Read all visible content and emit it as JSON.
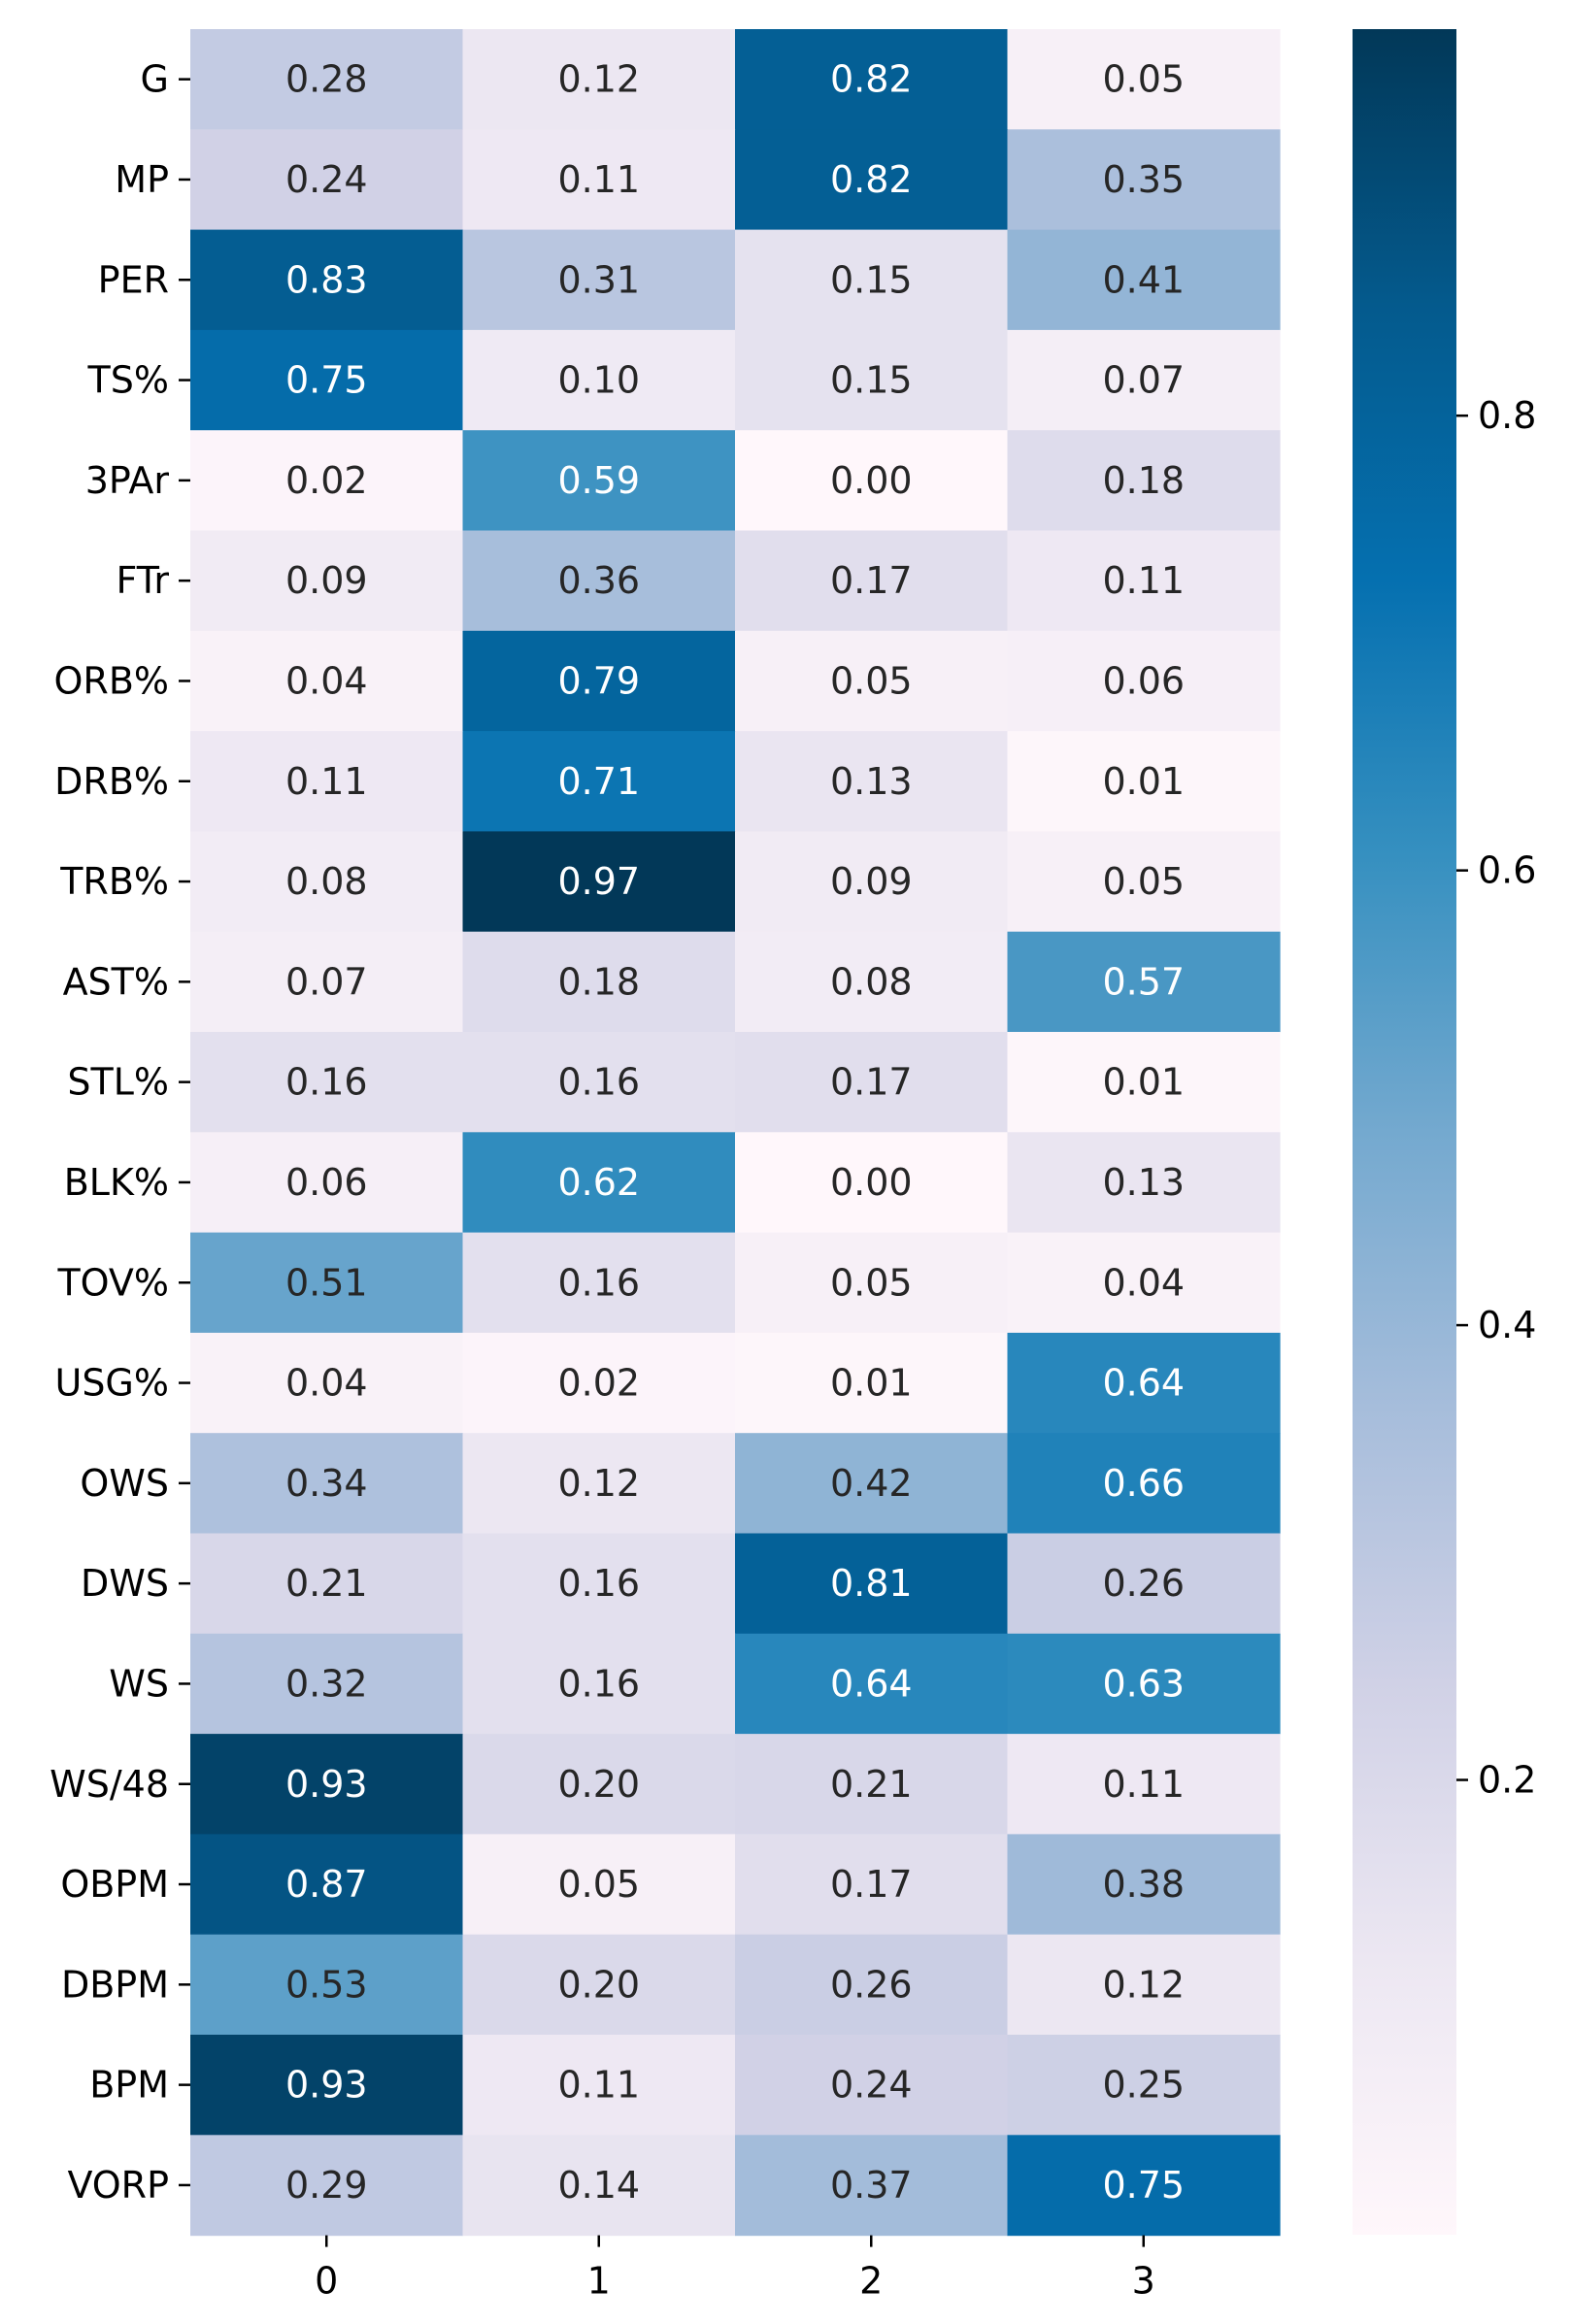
{
  "chart_data": {
    "type": "heatmap",
    "title": "",
    "xlabel": "",
    "ylabel": "",
    "x_categories": [
      "0",
      "1",
      "2",
      "3"
    ],
    "y_categories": [
      "G",
      "MP",
      "PER",
      "TS%",
      "3PAr",
      "FTr",
      "ORB%",
      "DRB%",
      "TRB%",
      "AST%",
      "STL%",
      "BLK%",
      "TOV%",
      "USG%",
      "OWS",
      "DWS",
      "WS",
      "WS/48",
      "OBPM",
      "DBPM",
      "BPM",
      "VORP"
    ],
    "values": [
      [
        0.28,
        0.12,
        0.82,
        0.05
      ],
      [
        0.24,
        0.11,
        0.82,
        0.35
      ],
      [
        0.83,
        0.31,
        0.15,
        0.41
      ],
      [
        0.75,
        0.1,
        0.15,
        0.07
      ],
      [
        0.02,
        0.59,
        0.0,
        0.18
      ],
      [
        0.09,
        0.36,
        0.17,
        0.11
      ],
      [
        0.04,
        0.79,
        0.05,
        0.06
      ],
      [
        0.11,
        0.71,
        0.13,
        0.01
      ],
      [
        0.08,
        0.97,
        0.09,
        0.05
      ],
      [
        0.07,
        0.18,
        0.08,
        0.57
      ],
      [
        0.16,
        0.16,
        0.17,
        0.01
      ],
      [
        0.06,
        0.62,
        0.0,
        0.13
      ],
      [
        0.51,
        0.16,
        0.05,
        0.04
      ],
      [
        0.04,
        0.02,
        0.01,
        0.64
      ],
      [
        0.34,
        0.12,
        0.42,
        0.66
      ],
      [
        0.21,
        0.16,
        0.81,
        0.26
      ],
      [
        0.32,
        0.16,
        0.64,
        0.63
      ],
      [
        0.93,
        0.2,
        0.21,
        0.11
      ],
      [
        0.87,
        0.05,
        0.17,
        0.38
      ],
      [
        0.53,
        0.2,
        0.26,
        0.12
      ],
      [
        0.93,
        0.11,
        0.24,
        0.25
      ],
      [
        0.29,
        0.14,
        0.37,
        0.75
      ]
    ],
    "value_format": "0.00",
    "colormap": "PuBu",
    "colorbar": {
      "range": [
        0.0,
        0.97
      ],
      "ticks": [
        0.2,
        0.4,
        0.6,
        0.8
      ],
      "tick_labels": [
        "0.2",
        "0.4",
        "0.6",
        "0.8"
      ]
    },
    "grid": false,
    "legend": "colorbar-right"
  }
}
